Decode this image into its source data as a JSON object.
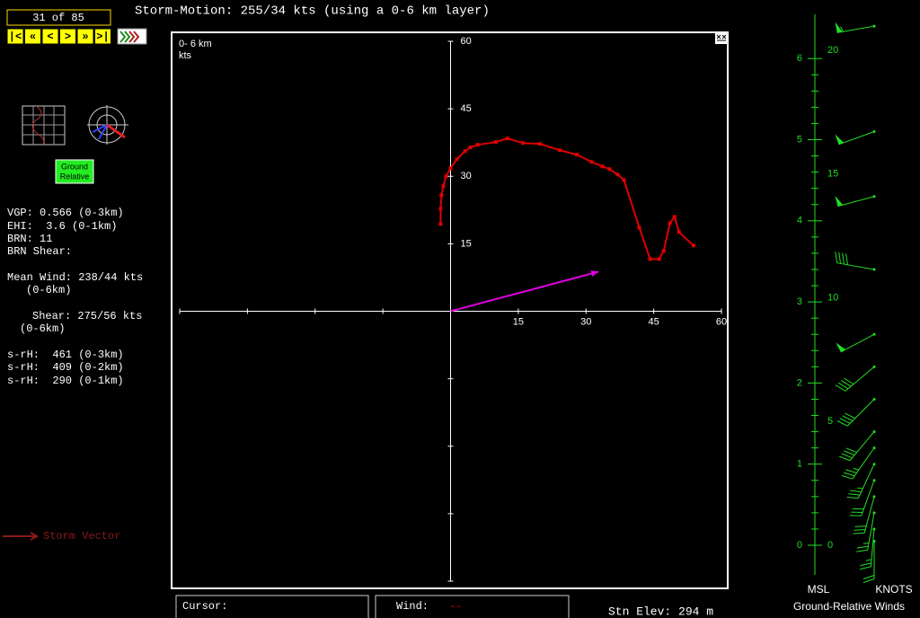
{
  "toolbar": {
    "counter": "31 of 85",
    "buttons": [
      "|<",
      "«",
      "<",
      ">",
      "»",
      ">|"
    ]
  },
  "header": "Storm-Motion: 255/34 kts (using a 0-6 km layer)",
  "params": [
    "VGP: 0.566 (0-3km)",
    "EHI:  3.6 (0-1km)",
    "BRN: 11",
    "BRN Shear:",
    "Mean Wind: 238/44 kts",
    "(0-6km)",
    "Shear: 275/56 kts",
    "(0-6km)",
    "s-rH:  461 (0-3km)",
    "s-rH:  409 (0-2km)",
    "s-rH:  290 (0-1km)"
  ],
  "ground_relative_button": [
    "Ground",
    "Relative"
  ],
  "storm_vector_label": "Storm Vector",
  "chart_data": {
    "type": "line",
    "label": "0- 6 km",
    "units": "kts",
    "color": "#e00000",
    "xlim": [
      -60,
      60
    ],
    "ylim": [
      -60,
      60
    ],
    "xticks": [
      15,
      30,
      45,
      60
    ],
    "yticks": [
      15,
      30,
      45,
      60
    ],
    "unlabeled_xticks": [
      -60,
      -45,
      -30,
      -15
    ],
    "unlabeled_yticks": [
      -60,
      -45,
      -30,
      -15
    ],
    "x": [
      -2.2,
      -2.2,
      -2,
      -1.6,
      -1,
      0,
      1.4,
      3.2,
      4.4,
      6,
      10,
      12.6,
      16,
      19.8,
      24.2,
      28,
      31.2,
      33.6,
      35.2,
      37,
      38.4,
      41.8,
      44.2,
      46.2,
      47.2,
      48.6,
      49.6,
      50.6,
      53.8
    ],
    "y": [
      19.4,
      22.8,
      25.8,
      27.8,
      30,
      31.8,
      33.8,
      35.6,
      36.4,
      37,
      37.6,
      38.4,
      37.4,
      37.2,
      35.8,
      34.8,
      33.2,
      32.2,
      31.6,
      30.4,
      29.2,
      18.6,
      11.6,
      11.6,
      13.4,
      19.6,
      21,
      17.6,
      14.6
    ],
    "storm_motion": {
      "u": 32.8,
      "v": 8.8,
      "color": "#e000e0"
    }
  },
  "footer": {
    "cursor": "Cursor:",
    "wind": "Wind:",
    "wind_value": "--",
    "stn_elev": "Stn Elev: 294 m"
  },
  "winds": {
    "title": "Ground-Relative Winds",
    "msl_label": "MSL",
    "knots_label": "KNOTS",
    "color": "#22dd22",
    "msl_ticks": [
      0,
      1,
      2,
      3,
      4,
      5,
      6
    ],
    "knot_ticks": [
      0,
      5,
      10,
      15,
      20
    ],
    "minor_divisions": 5,
    "barbs": [
      {
        "height": 6.4,
        "direction": 260,
        "speed": 55
      },
      {
        "height": 5.1,
        "direction": 250,
        "speed": 50
      },
      {
        "height": 4.3,
        "direction": 255,
        "speed": 50
      },
      {
        "height": 3.4,
        "direction": 280,
        "speed": 40
      },
      {
        "height": 2.6,
        "direction": 242,
        "speed": 50
      },
      {
        "height": 2.2,
        "direction": 230,
        "speed": 40
      },
      {
        "height": 1.8,
        "direction": 225,
        "speed": 40
      },
      {
        "height": 1.4,
        "direction": 220,
        "speed": 40
      },
      {
        "height": 1.2,
        "direction": 215,
        "speed": 35
      },
      {
        "height": 1.0,
        "direction": 205,
        "speed": 35
      },
      {
        "height": 0.8,
        "direction": 200,
        "speed": 30
      },
      {
        "height": 0.6,
        "direction": 195,
        "speed": 30
      },
      {
        "height": 0.4,
        "direction": 190,
        "speed": 25
      },
      {
        "height": 0.2,
        "direction": 185,
        "speed": 25
      },
      {
        "height": 0.05,
        "direction": 180,
        "speed": 20
      }
    ]
  }
}
